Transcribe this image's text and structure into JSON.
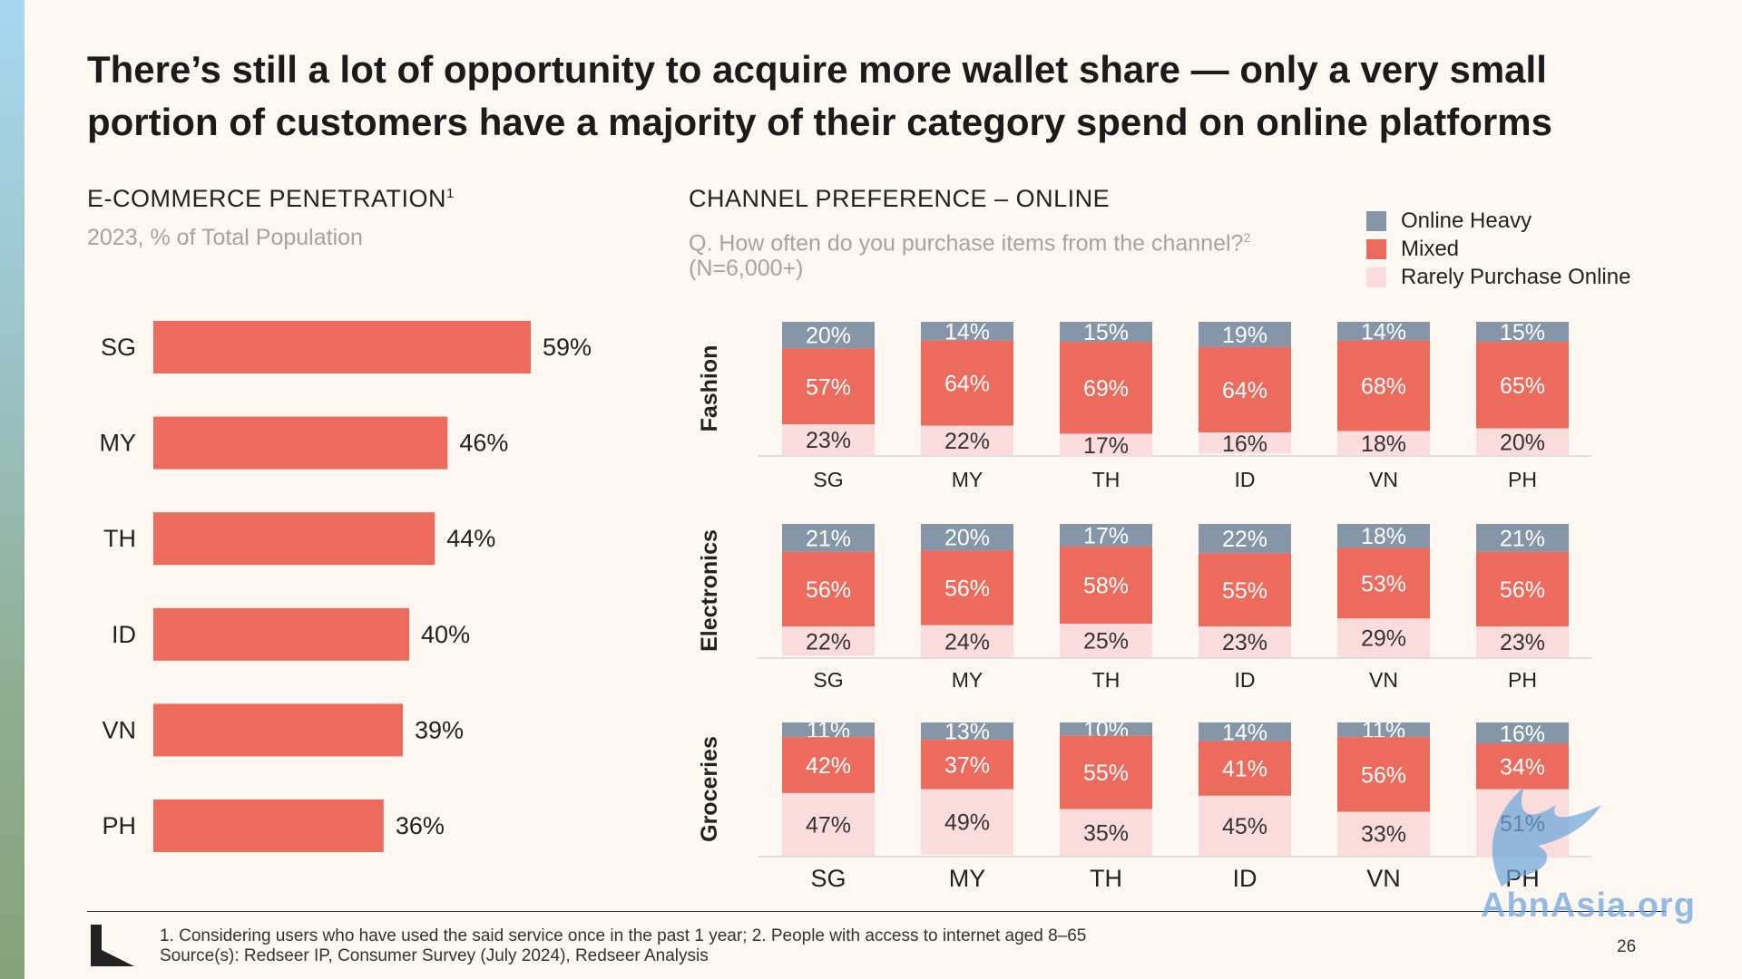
{
  "slide": {
    "title": "There’s still a lot of opportunity to acquire more wallet share — only a very small portion of customers have a majority of their category spend on online platforms",
    "page_number": "26"
  },
  "left_chart": {
    "title": "E-COMMERCE PENETRATION",
    "title_sup": "1",
    "subtitle": "2023, % of Total Population"
  },
  "right_chart": {
    "title": "CHANNEL PREFERENCE – ONLINE",
    "subtitle": "Q. How often do you purchase items from the channel?",
    "subtitle_sup": "2",
    "subtitle_note": "(N=6,000+)",
    "legend": [
      {
        "label": "Online Heavy",
        "color": "#8596a8"
      },
      {
        "label": "Mixed",
        "color": "#ec6b5c"
      },
      {
        "label": "Rarely Purchase Online",
        "color": "#fadcdc"
      }
    ]
  },
  "footer": {
    "note_1": "1. Considering users who have used the said service once in the past 1 year; 2. People with access to internet aged 8–65",
    "note_2": "Source(s): Redseer IP, Consumer Survey (July 2024), Redseer Analysis"
  },
  "watermark": {
    "text": "AbnAsia.org"
  },
  "chart_data": [
    {
      "type": "bar",
      "orientation": "horizontal",
      "title": "E-COMMERCE PENETRATION",
      "subtitle": "2023, % of Total Population",
      "categories": [
        "SG",
        "MY",
        "TH",
        "ID",
        "VN",
        "PH"
      ],
      "values": [
        59,
        46,
        44,
        40,
        39,
        36
      ],
      "value_labels": [
        "59%",
        "46%",
        "44%",
        "40%",
        "39%",
        "36%"
      ],
      "unit": "%",
      "xlim": [
        0,
        60
      ],
      "color": "#ec6b5c",
      "grid": false
    },
    {
      "type": "bar",
      "stacked": true,
      "title": "CHANNEL PREFERENCE – ONLINE",
      "legend_position": "top-right",
      "grid": false,
      "ylim": [
        0,
        100
      ],
      "categories": [
        "SG",
        "MY",
        "TH",
        "ID",
        "VN",
        "PH"
      ],
      "series_names": [
        "Online Heavy",
        "Mixed",
        "Rarely Purchase Online"
      ],
      "series_colors": [
        "#8596a8",
        "#ec6b5c",
        "#fadcdc"
      ],
      "panels": [
        {
          "name": "Fashion",
          "series": [
            {
              "name": "Online Heavy",
              "values": [
                20,
                14,
                15,
                19,
                14,
                15
              ]
            },
            {
              "name": "Mixed",
              "values": [
                57,
                64,
                69,
                64,
                68,
                65
              ]
            },
            {
              "name": "Rarely Purchase Online",
              "values": [
                23,
                22,
                17,
                16,
                18,
                20
              ]
            }
          ]
        },
        {
          "name": "Electronics",
          "series": [
            {
              "name": "Online Heavy",
              "values": [
                21,
                20,
                17,
                22,
                18,
                21
              ]
            },
            {
              "name": "Mixed",
              "values": [
                56,
                56,
                58,
                55,
                53,
                56
              ]
            },
            {
              "name": "Rarely Purchase Online",
              "values": [
                22,
                24,
                25,
                23,
                29,
                23
              ]
            }
          ]
        },
        {
          "name": "Groceries",
          "series": [
            {
              "name": "Online Heavy",
              "values": [
                11,
                13,
                10,
                14,
                11,
                16
              ]
            },
            {
              "name": "Mixed",
              "values": [
                42,
                37,
                55,
                41,
                56,
                34
              ]
            },
            {
              "name": "Rarely Purchase Online",
              "values": [
                47,
                49,
                35,
                45,
                33,
                51
              ]
            }
          ]
        }
      ]
    }
  ]
}
